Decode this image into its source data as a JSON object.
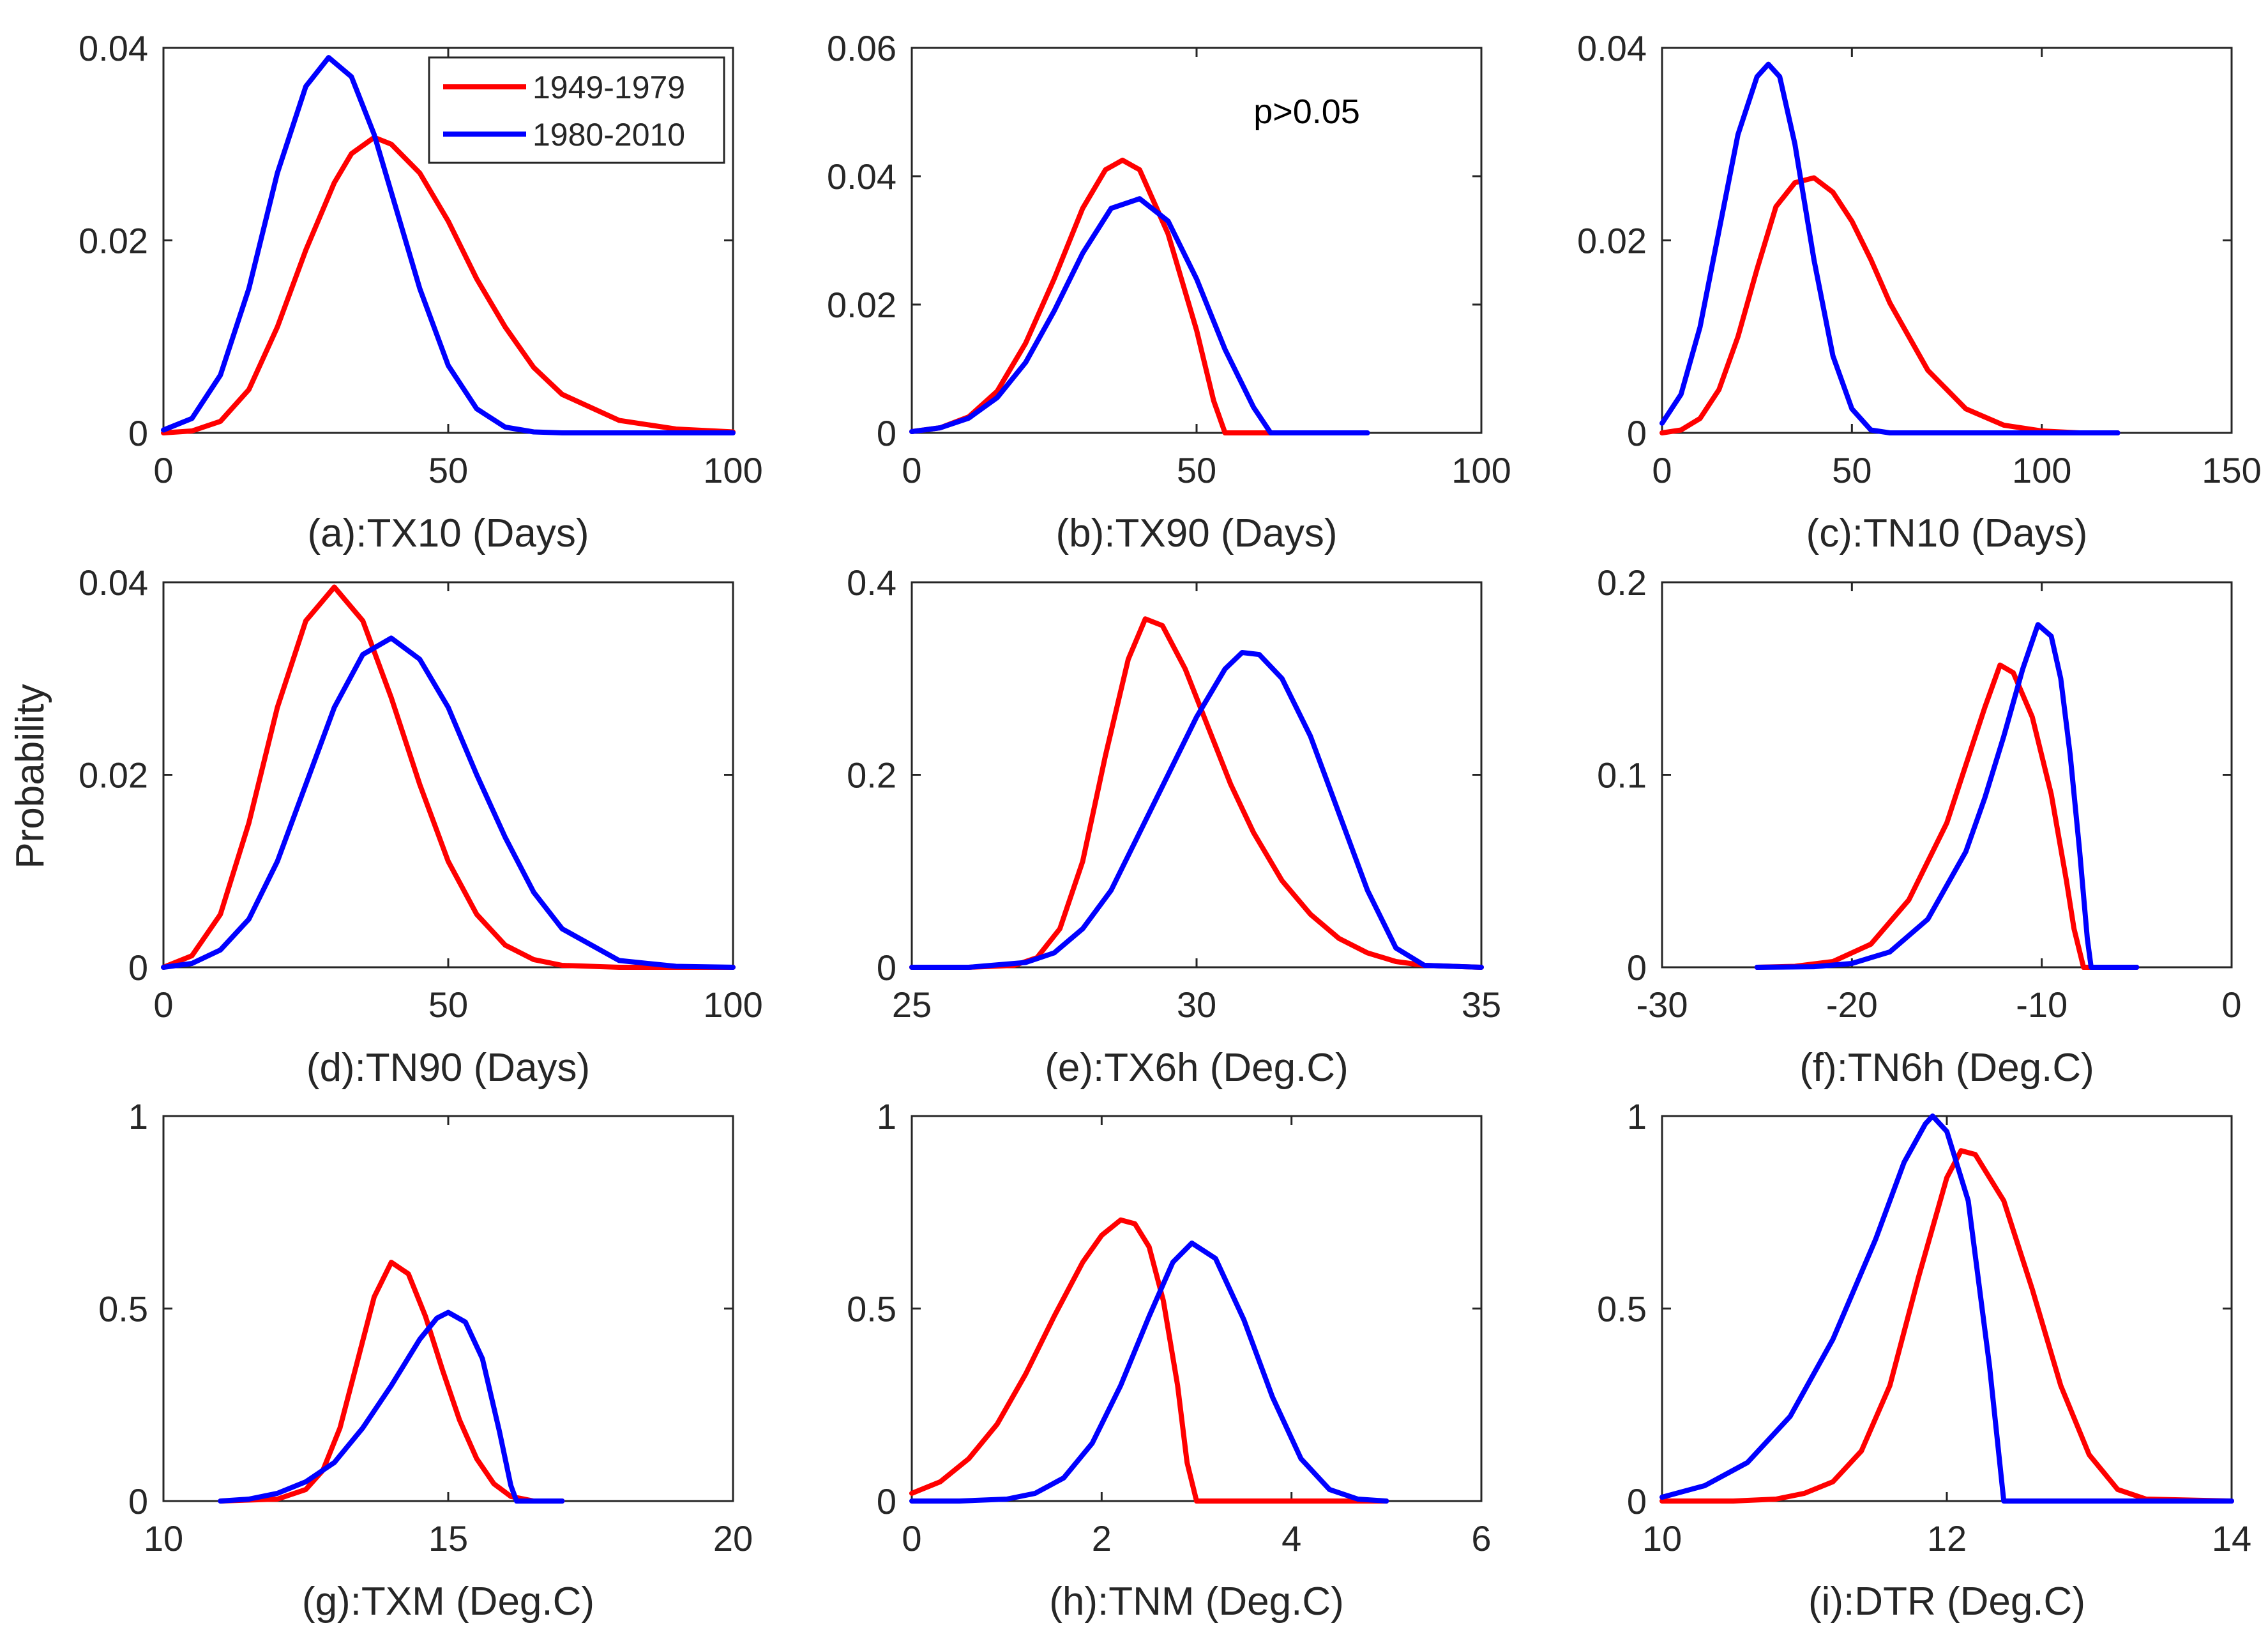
{
  "figure": {
    "ylabel": "Probability"
  },
  "legend": {
    "entries": [
      {
        "label": "1949-1979",
        "color": "#ff0000"
      },
      {
        "label": "1980-2010",
        "color": "#0000ff"
      }
    ]
  },
  "chart_data": [
    {
      "type": "line",
      "panel": "a",
      "title": "",
      "xlabel": "(a):TX10 (Days)",
      "ylabel": "",
      "xlim": [
        0,
        100
      ],
      "ylim": [
        0,
        0.04
      ],
      "xticks": [
        0,
        50,
        100
      ],
      "xticklabels": [
        "0",
        "50",
        "100"
      ],
      "yticks": [
        0,
        0.02,
        0.04
      ],
      "yticklabels": [
        "0",
        "0.02",
        "0.04"
      ],
      "annotation": "",
      "series": [
        {
          "name": "1949-1979",
          "color": "#ff0000",
          "x": [
            0,
            5,
            10,
            15,
            20,
            25,
            30,
            33,
            37,
            40,
            45,
            50,
            55,
            60,
            65,
            70,
            80,
            90,
            100
          ],
          "y": [
            0,
            0.0002,
            0.0012,
            0.0045,
            0.011,
            0.019,
            0.026,
            0.029,
            0.0307,
            0.03,
            0.027,
            0.022,
            0.016,
            0.011,
            0.0068,
            0.004,
            0.0013,
            0.0004,
            0.0001
          ]
        },
        {
          "name": "1980-2010",
          "color": "#0000ff",
          "x": [
            0,
            5,
            10,
            15,
            20,
            25,
            29,
            33,
            37,
            40,
            45,
            50,
            55,
            60,
            65,
            70,
            80,
            100
          ],
          "y": [
            0.0003,
            0.0015,
            0.006,
            0.015,
            0.027,
            0.036,
            0.039,
            0.037,
            0.031,
            0.025,
            0.015,
            0.007,
            0.0025,
            0.0006,
            0.0001,
            0,
            0,
            0
          ]
        }
      ]
    },
    {
      "type": "line",
      "panel": "b",
      "title": "",
      "xlabel": "(b):TX90 (Days)",
      "ylabel": "",
      "xlim": [
        0,
        100
      ],
      "ylim": [
        0,
        0.06
      ],
      "xticks": [
        0,
        50,
        100
      ],
      "xticklabels": [
        "0",
        "50",
        "100"
      ],
      "yticks": [
        0,
        0.02,
        0.04,
        0.06
      ],
      "yticklabels": [
        "0",
        "0.02",
        "0.04",
        "0.06"
      ],
      "annotation": "p>0.05",
      "series": [
        {
          "name": "1949-1979",
          "color": "#ff0000",
          "x": [
            0,
            5,
            10,
            15,
            20,
            25,
            30,
            34,
            37,
            40,
            45,
            50,
            53,
            55,
            60,
            65
          ],
          "y": [
            0.0002,
            0.0008,
            0.0025,
            0.0065,
            0.014,
            0.024,
            0.035,
            0.041,
            0.0425,
            0.041,
            0.031,
            0.016,
            0.005,
            0,
            0,
            0
          ]
        },
        {
          "name": "1980-2010",
          "color": "#0000ff",
          "x": [
            0,
            5,
            10,
            15,
            20,
            25,
            30,
            35,
            40,
            45,
            50,
            55,
            60,
            63,
            70,
            80
          ],
          "y": [
            0.0002,
            0.0008,
            0.0023,
            0.0055,
            0.011,
            0.019,
            0.028,
            0.035,
            0.0365,
            0.033,
            0.024,
            0.013,
            0.004,
            0,
            0,
            0
          ]
        }
      ]
    },
    {
      "type": "line",
      "panel": "c",
      "title": "",
      "xlabel": "(c):TN10 (Days)",
      "ylabel": "",
      "xlim": [
        0,
        150
      ],
      "ylim": [
        0,
        0.04
      ],
      "xticks": [
        0,
        50,
        100,
        150
      ],
      "xticklabels": [
        "0",
        "50",
        "100",
        "150"
      ],
      "yticks": [
        0,
        0.02,
        0.04
      ],
      "yticklabels": [
        "0",
        "0.02",
        "0.04"
      ],
      "annotation": "",
      "series": [
        {
          "name": "1949-1979",
          "color": "#ff0000",
          "x": [
            0,
            5,
            10,
            15,
            20,
            25,
            30,
            35,
            40,
            45,
            50,
            55,
            60,
            70,
            80,
            90,
            100,
            110,
            120
          ],
          "y": [
            0,
            0.0003,
            0.0015,
            0.0045,
            0.01,
            0.017,
            0.0235,
            0.026,
            0.0265,
            0.025,
            0.022,
            0.018,
            0.0135,
            0.0065,
            0.0025,
            0.0008,
            0.0002,
            0,
            0
          ]
        },
        {
          "name": "1980-2010",
          "color": "#0000ff",
          "x": [
            0,
            5,
            10,
            15,
            20,
            25,
            28,
            31,
            35,
            40,
            45,
            50,
            55,
            60,
            80,
            100,
            120
          ],
          "y": [
            0.001,
            0.004,
            0.011,
            0.021,
            0.031,
            0.037,
            0.0383,
            0.037,
            0.03,
            0.018,
            0.008,
            0.0025,
            0.0003,
            0,
            0,
            0,
            0
          ]
        }
      ]
    },
    {
      "type": "line",
      "panel": "d",
      "title": "",
      "xlabel": "(d):TN90 (Days)",
      "ylabel": "",
      "xlim": [
        0,
        100
      ],
      "ylim": [
        0,
        0.04
      ],
      "xticks": [
        0,
        50,
        100
      ],
      "xticklabels": [
        "0",
        "50",
        "100"
      ],
      "yticks": [
        0,
        0.02,
        0.04
      ],
      "yticklabels": [
        "0",
        "0.02",
        "0.04"
      ],
      "annotation": "",
      "series": [
        {
          "name": "1949-1979",
          "color": "#ff0000",
          "x": [
            0,
            5,
            10,
            15,
            20,
            25,
            30,
            35,
            40,
            45,
            50,
            55,
            60,
            65,
            70,
            80,
            100
          ],
          "y": [
            0,
            0.0012,
            0.0055,
            0.015,
            0.027,
            0.036,
            0.0395,
            0.036,
            0.028,
            0.019,
            0.011,
            0.0055,
            0.0023,
            0.0008,
            0.0002,
            0,
            0
          ]
        },
        {
          "name": "1980-2010",
          "color": "#0000ff",
          "x": [
            0,
            5,
            10,
            15,
            20,
            25,
            30,
            35,
            40,
            45,
            50,
            55,
            60,
            65,
            70,
            80,
            90,
            100
          ],
          "y": [
            0,
            0.0004,
            0.0018,
            0.005,
            0.011,
            0.019,
            0.027,
            0.0325,
            0.0342,
            0.032,
            0.027,
            0.02,
            0.0135,
            0.0078,
            0.004,
            0.0007,
            0.0001,
            0
          ]
        }
      ]
    },
    {
      "type": "line",
      "panel": "e",
      "title": "",
      "xlabel": "(e):TX6h (Deg.C)",
      "ylabel": "",
      "xlim": [
        25,
        35
      ],
      "ylim": [
        0,
        0.4
      ],
      "xticks": [
        25,
        30,
        35
      ],
      "xticklabels": [
        "25",
        "30",
        "35"
      ],
      "yticks": [
        0,
        0.2,
        0.4
      ],
      "yticklabels": [
        "0",
        "0.2",
        "0.4"
      ],
      "annotation": "",
      "series": [
        {
          "name": "1949-1979",
          "color": "#ff0000",
          "x": [
            25,
            26,
            26.8,
            27.2,
            27.6,
            28,
            28.4,
            28.8,
            29.1,
            29.4,
            29.8,
            30.2,
            30.6,
            31,
            31.5,
            32,
            32.5,
            33,
            33.5,
            34,
            35
          ],
          "y": [
            0,
            0,
            0.002,
            0.01,
            0.04,
            0.11,
            0.22,
            0.32,
            0.362,
            0.355,
            0.31,
            0.25,
            0.19,
            0.14,
            0.09,
            0.055,
            0.03,
            0.015,
            0.006,
            0.002,
            0
          ]
        },
        {
          "name": "1980-2010",
          "color": "#0000ff",
          "x": [
            25,
            26,
            27,
            27.5,
            28,
            28.5,
            29,
            29.5,
            30,
            30.5,
            30.8,
            31.1,
            31.5,
            32,
            32.5,
            33,
            33.5,
            34,
            35
          ],
          "y": [
            0,
            0,
            0.005,
            0.015,
            0.04,
            0.08,
            0.14,
            0.2,
            0.26,
            0.31,
            0.327,
            0.325,
            0.3,
            0.24,
            0.16,
            0.08,
            0.02,
            0.002,
            0
          ]
        }
      ]
    },
    {
      "type": "line",
      "panel": "f",
      "title": "",
      "xlabel": "(f):TN6h (Deg.C)",
      "ylabel": "",
      "xlim": [
        -30,
        0
      ],
      "ylim": [
        0,
        0.2
      ],
      "xticks": [
        -30,
        -20,
        -10,
        0
      ],
      "xticklabels": [
        "-30",
        "-20",
        "-10",
        "0"
      ],
      "yticks": [
        0,
        0.1,
        0.2
      ],
      "yticklabels": [
        "0",
        "0.1",
        "0.2"
      ],
      "annotation": "",
      "series": [
        {
          "name": "1949-1979",
          "color": "#ff0000",
          "x": [
            -25,
            -23,
            -21,
            -19,
            -17,
            -15,
            -14,
            -13,
            -12.2,
            -11.5,
            -10.5,
            -9.5,
            -8.7,
            -8.3,
            -7.8,
            -5
          ],
          "y": [
            0,
            0.0005,
            0.003,
            0.012,
            0.035,
            0.075,
            0.105,
            0.135,
            0.157,
            0.153,
            0.13,
            0.09,
            0.045,
            0.02,
            0,
            0
          ]
        },
        {
          "name": "1980-2010",
          "color": "#0000ff",
          "x": [
            -25,
            -22,
            -20,
            -18,
            -16,
            -14,
            -13,
            -12,
            -11,
            -10.2,
            -9.5,
            -9,
            -8.5,
            -8,
            -7.6,
            -7.4,
            -5
          ],
          "y": [
            0,
            0.0003,
            0.002,
            0.008,
            0.025,
            0.06,
            0.088,
            0.12,
            0.155,
            0.178,
            0.172,
            0.15,
            0.11,
            0.06,
            0.015,
            0,
            0
          ]
        }
      ]
    },
    {
      "type": "line",
      "panel": "g",
      "title": "",
      "xlabel": "(g):TXM (Deg.C)",
      "ylabel": "",
      "xlim": [
        10,
        20
      ],
      "ylim": [
        0,
        1
      ],
      "xticks": [
        10,
        15,
        20
      ],
      "xticklabels": [
        "10",
        "15",
        "20"
      ],
      "yticks": [
        0,
        0.5,
        1
      ],
      "yticklabels": [
        "0",
        "0.5",
        "1"
      ],
      "annotation": "",
      "series": [
        {
          "name": "1949-1979",
          "color": "#ff0000",
          "x": [
            11,
            12,
            12.5,
            12.8,
            13.1,
            13.4,
            13.7,
            14,
            14.3,
            14.6,
            14.9,
            15.2,
            15.5,
            15.8,
            16.1,
            16.5,
            17
          ],
          "y": [
            0,
            0.005,
            0.03,
            0.08,
            0.19,
            0.36,
            0.53,
            0.62,
            0.59,
            0.48,
            0.34,
            0.21,
            0.11,
            0.045,
            0.012,
            0,
            0
          ]
        },
        {
          "name": "1980-2010",
          "color": "#0000ff",
          "x": [
            11,
            11.5,
            12,
            12.5,
            13,
            13.5,
            14,
            14.5,
            14.8,
            15,
            15.3,
            15.6,
            15.9,
            16.1,
            16.2,
            17
          ],
          "y": [
            0,
            0.005,
            0.02,
            0.05,
            0.1,
            0.19,
            0.3,
            0.42,
            0.475,
            0.49,
            0.465,
            0.37,
            0.18,
            0.04,
            0,
            0
          ]
        }
      ]
    },
    {
      "type": "line",
      "panel": "h",
      "title": "",
      "xlabel": "(h):TNM (Deg.C)",
      "ylabel": "",
      "xlim": [
        0,
        6
      ],
      "ylim": [
        0,
        1
      ],
      "xticks": [
        0,
        2,
        4,
        6
      ],
      "xticklabels": [
        "0",
        "2",
        "4",
        "6"
      ],
      "yticks": [
        0,
        0.5,
        1
      ],
      "yticklabels": [
        "0",
        "0.5",
        "1"
      ],
      "annotation": "",
      "series": [
        {
          "name": "1949-1979",
          "color": "#ff0000",
          "x": [
            0,
            0.3,
            0.6,
            0.9,
            1.2,
            1.5,
            1.8,
            2,
            2.2,
            2.35,
            2.5,
            2.65,
            2.8,
            2.9,
            3,
            3.5,
            4,
            5
          ],
          "y": [
            0.02,
            0.05,
            0.11,
            0.2,
            0.33,
            0.48,
            0.62,
            0.69,
            0.73,
            0.72,
            0.66,
            0.52,
            0.3,
            0.1,
            0,
            0,
            0,
            0
          ]
        },
        {
          "name": "1980-2010",
          "color": "#0000ff",
          "x": [
            0,
            0.5,
            1,
            1.3,
            1.6,
            1.9,
            2.2,
            2.5,
            2.75,
            2.95,
            3.2,
            3.5,
            3.8,
            4.1,
            4.4,
            4.7,
            5
          ],
          "y": [
            0,
            0,
            0.005,
            0.02,
            0.06,
            0.15,
            0.3,
            0.48,
            0.62,
            0.67,
            0.63,
            0.47,
            0.27,
            0.11,
            0.03,
            0.005,
            0
          ]
        }
      ]
    },
    {
      "type": "line",
      "panel": "i",
      "title": "",
      "xlabel": "(i):DTR (Deg.C)",
      "ylabel": "",
      "xlim": [
        10,
        14
      ],
      "ylim": [
        0,
        1
      ],
      "xticks": [
        10,
        12,
        14
      ],
      "xticklabels": [
        "10",
        "12",
        "14"
      ],
      "yticks": [
        0,
        0.5,
        1
      ],
      "yticklabels": [
        "0",
        "0.5",
        "1"
      ],
      "annotation": "",
      "series": [
        {
          "name": "1949-1979",
          "color": "#ff0000",
          "x": [
            10,
            10.5,
            10.8,
            11,
            11.2,
            11.4,
            11.6,
            11.8,
            12,
            12.1,
            12.2,
            12.4,
            12.6,
            12.8,
            13,
            13.2,
            13.4,
            14
          ],
          "y": [
            0,
            0,
            0.005,
            0.02,
            0.05,
            0.13,
            0.3,
            0.58,
            0.84,
            0.91,
            0.9,
            0.78,
            0.55,
            0.3,
            0.12,
            0.03,
            0.005,
            0
          ]
        },
        {
          "name": "1980-2010",
          "color": "#0000ff",
          "x": [
            10,
            10.3,
            10.6,
            10.9,
            11.2,
            11.5,
            11.7,
            11.85,
            11.9,
            12,
            12.15,
            12.3,
            12.4,
            13,
            14
          ],
          "y": [
            0.01,
            0.04,
            0.1,
            0.22,
            0.42,
            0.68,
            0.88,
            0.98,
            1.0,
            0.96,
            0.78,
            0.35,
            0,
            0,
            0
          ]
        }
      ]
    }
  ]
}
